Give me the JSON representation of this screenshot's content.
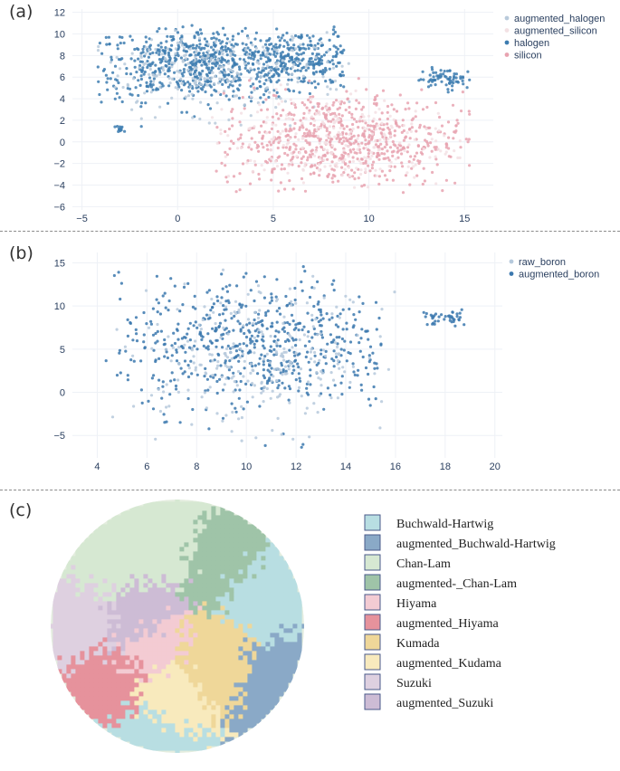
{
  "panel_labels": {
    "a": "(a)",
    "b": "(b)",
    "c": "(c)"
  },
  "chart_data": [
    {
      "id": "a",
      "type": "scatter",
      "xlim": [
        -5.5,
        16.5
      ],
      "ylim": [
        -6.3,
        12.3
      ],
      "xticks": [
        -5,
        0,
        5,
        10,
        15
      ],
      "yticks": [
        -6,
        -4,
        -2,
        0,
        2,
        4,
        6,
        8,
        10,
        12
      ],
      "grid": true,
      "legend_position": "top-right",
      "series": [
        {
          "name": "augmented_halogen",
          "color": "#b9cadb"
        },
        {
          "name": "augmented_silicon",
          "color": "#f3e1e4"
        },
        {
          "name": "halogen",
          "color": "#3d7cb0"
        },
        {
          "name": "silicon",
          "color": "#e8a3b0"
        }
      ],
      "clusters": [
        {
          "series": "halogen",
          "cx": 1.5,
          "cy": 7.2,
          "sx": 3.3,
          "sy": 1.7,
          "xmin": -4.2,
          "xmax": 8.6,
          "ymin": 0.8,
          "ymax": 10.8,
          "n": 700
        },
        {
          "series": "halogen",
          "cx": 6.8,
          "cy": 7.6,
          "sx": 1.6,
          "sy": 1.3,
          "xmin": 3.8,
          "xmax": 8.8,
          "ymin": 4.5,
          "ymax": 10.8,
          "n": 170
        },
        {
          "series": "halogen",
          "cx": 14.0,
          "cy": 5.8,
          "sx": 1.0,
          "sy": 0.5,
          "xmin": 12.5,
          "xmax": 15.3,
          "ymin": 4.5,
          "ymax": 7.0,
          "n": 70
        },
        {
          "series": "halogen",
          "cx": -3.0,
          "cy": 1.2,
          "sx": 0.2,
          "sy": 0.15,
          "xmin": -3.4,
          "xmax": -2.6,
          "ymin": 0.9,
          "ymax": 1.5,
          "n": 12
        },
        {
          "series": "augmented_halogen",
          "cx": 2.0,
          "cy": 6.5,
          "sx": 3.5,
          "sy": 2.0,
          "xmin": -4.2,
          "xmax": 9.0,
          "ymin": 0.8,
          "ymax": 10.8,
          "n": 230
        },
        {
          "series": "silicon",
          "cx": 8.5,
          "cy": 0.2,
          "sx": 3.2,
          "sy": 2.2,
          "xmin": 2.0,
          "xmax": 15.3,
          "ymin": -4.7,
          "ymax": 5.9,
          "n": 680
        },
        {
          "series": "augmented_silicon",
          "cx": 7.5,
          "cy": 0.0,
          "sx": 3.5,
          "sy": 2.3,
          "xmin": 1.8,
          "xmax": 15.3,
          "ymin": -4.8,
          "ymax": 6.0,
          "n": 230
        }
      ]
    },
    {
      "id": "b",
      "type": "scatter",
      "xlim": [
        3.0,
        20.3
      ],
      "ylim": [
        -7.6,
        16.2
      ],
      "xticks": [
        4,
        6,
        8,
        10,
        12,
        14,
        16,
        18,
        20
      ],
      "yticks": [
        -5,
        0,
        5,
        10,
        15
      ],
      "grid": true,
      "legend_position": "top-right",
      "series": [
        {
          "name": "raw_boron",
          "color": "#b6c9dc"
        },
        {
          "name": "augmented_boron",
          "color": "#3b78ae"
        }
      ],
      "clusters": [
        {
          "series": "augmented_boron",
          "cx": 10.5,
          "cy": 5.5,
          "sx": 2.8,
          "sy": 3.8,
          "xmin": 4.2,
          "xmax": 16.0,
          "ymin": -7.0,
          "ymax": 14.8,
          "n": 600
        },
        {
          "series": "augmented_boron",
          "cx": 18.0,
          "cy": 8.6,
          "sx": 0.5,
          "sy": 0.5,
          "xmin": 16.8,
          "xmax": 19.0,
          "ymin": 7.5,
          "ymax": 10.5,
          "n": 40
        },
        {
          "series": "raw_boron",
          "cx": 10.5,
          "cy": 4.0,
          "sx": 2.8,
          "sy": 4.0,
          "xmin": 4.2,
          "xmax": 16.0,
          "ymin": -7.0,
          "ymax": 14.8,
          "n": 260
        }
      ]
    },
    {
      "id": "c",
      "type": "scatter",
      "shape": "disk",
      "legend_position": "right",
      "series": [
        {
          "name": "Buchwald-Hartwig",
          "color": "#b8dee2"
        },
        {
          "name": "augmented_Buchwald-Hartwig",
          "color": "#8aa9c7"
        },
        {
          "name": "Chan-Lam",
          "color": "#d6e8d2"
        },
        {
          "name": "augmented-_Chan-Lam",
          "color": "#9fc4a8"
        },
        {
          "name": "Hiyama",
          "color": "#f3cbd3"
        },
        {
          "name": "augmented_Hiyama",
          "color": "#e6929c"
        },
        {
          "name": "Kumada",
          "color": "#efd799"
        },
        {
          "name": "augmented_Kudama",
          "color": "#f8eabd"
        },
        {
          "name": "Suzuki",
          "color": "#ded0e0"
        },
        {
          "name": "augmented_Suzuki",
          "color": "#cdbcd5"
        }
      ]
    }
  ]
}
